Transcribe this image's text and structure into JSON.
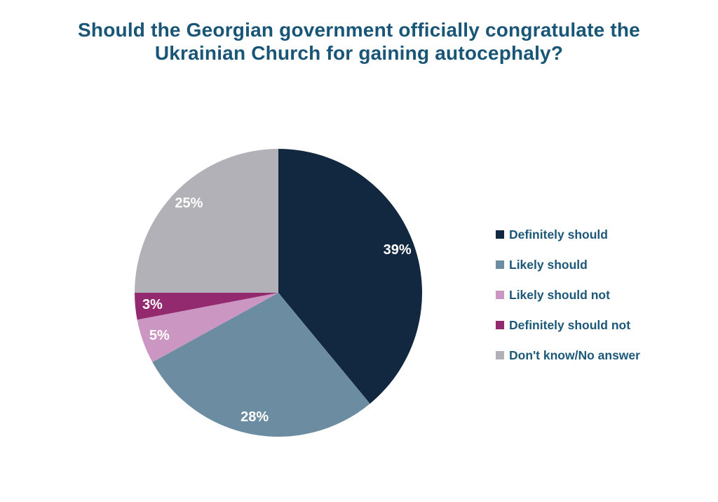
{
  "chart_data": {
    "type": "pie",
    "title": "Should the Georgian government officially congratulate the Ukrainian Church for gaining autocephaly?",
    "title_color": "#195577",
    "start_angle_deg": 0,
    "direction": "clockwise",
    "legend_position": "right",
    "legend_text_color": "#1d5878",
    "slice_label_color": "#ffffff",
    "background": "#ffffff",
    "slices": [
      {
        "label": "Definitely should",
        "value": 39,
        "pct_label": "39%",
        "color": "#122840"
      },
      {
        "label": "Likely should",
        "value": 28,
        "pct_label": "28%",
        "color": "#6c8da1"
      },
      {
        "label": "Likely should not",
        "value": 5,
        "pct_label": "5%",
        "color": "#cc96c2"
      },
      {
        "label": "Definitely should not",
        "value": 3,
        "pct_label": "3%",
        "color": "#93296f"
      },
      {
        "label": "Don't know/No answer",
        "value": 25,
        "pct_label": "25%",
        "color": "#b2b1b7"
      }
    ]
  }
}
